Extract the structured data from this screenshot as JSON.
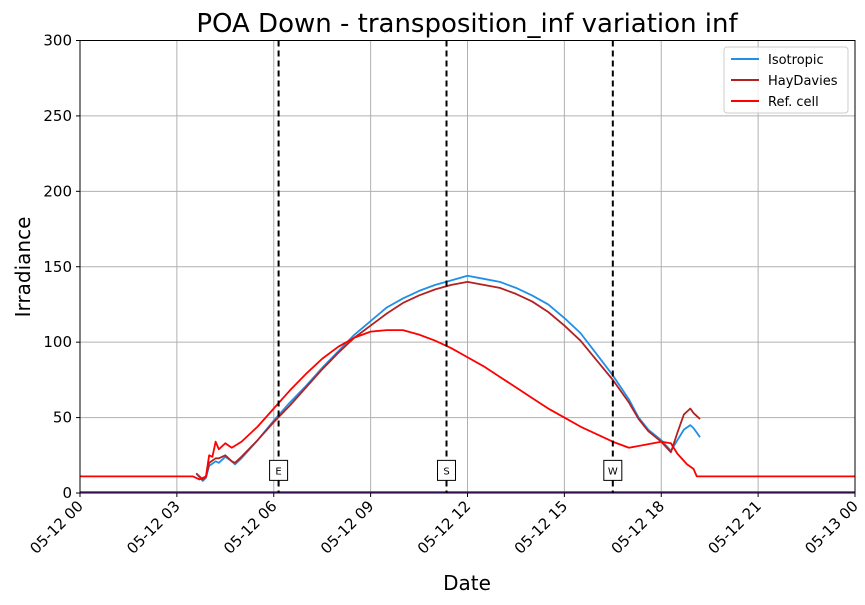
{
  "chart_data": {
    "type": "line",
    "title": "POA Down - transposition_inf variation inf",
    "xlabel": "Date",
    "ylabel": "Irradiance",
    "ylim": [
      0,
      300
    ],
    "xlim": [
      "2024-05-12 00:00",
      "2024-05-13 00:00"
    ],
    "x_ticks": [
      {
        "t": 0,
        "label": "05-12 00"
      },
      {
        "t": 3,
        "label": "05-12 03"
      },
      {
        "t": 6,
        "label": "05-12 06"
      },
      {
        "t": 9,
        "label": "05-12 09"
      },
      {
        "t": 12,
        "label": "05-12 12"
      },
      {
        "t": 15,
        "label": "05-12 15"
      },
      {
        "t": 18,
        "label": "05-12 18"
      },
      {
        "t": 21,
        "label": "05-12 21"
      },
      {
        "t": 24,
        "label": "05-13 00"
      }
    ],
    "y_ticks": [
      0,
      50,
      100,
      150,
      200,
      250,
      300
    ],
    "grid": true,
    "legend_position": "top-right",
    "vlines": [
      {
        "x": "05-12 06:10",
        "t": 6.15,
        "label": "E"
      },
      {
        "x": "05-12 11:20",
        "t": 11.35,
        "label": "S"
      },
      {
        "x": "05-12 16:30",
        "t": 16.5,
        "label": "W"
      }
    ],
    "series": [
      {
        "name": "Isotropic",
        "color": "#1f8fe8",
        "points": [
          [
            3.6,
            13
          ],
          [
            3.8,
            8
          ],
          [
            3.9,
            10
          ],
          [
            4.0,
            18
          ],
          [
            4.2,
            21
          ],
          [
            4.3,
            20
          ],
          [
            4.5,
            24
          ],
          [
            4.7,
            21
          ],
          [
            4.8,
            19
          ],
          [
            5.0,
            23
          ],
          [
            5.5,
            35
          ],
          [
            6.0,
            48
          ],
          [
            6.5,
            60
          ],
          [
            7.0,
            71
          ],
          [
            7.5,
            83
          ],
          [
            8.0,
            94
          ],
          [
            8.5,
            105
          ],
          [
            9.0,
            114
          ],
          [
            9.5,
            123
          ],
          [
            10.0,
            129
          ],
          [
            10.5,
            134
          ],
          [
            11.0,
            138
          ],
          [
            11.5,
            141
          ],
          [
            12.0,
            144
          ],
          [
            12.5,
            142
          ],
          [
            13.0,
            140
          ],
          [
            13.5,
            136
          ],
          [
            14.0,
            131
          ],
          [
            14.5,
            125
          ],
          [
            15.0,
            116
          ],
          [
            15.5,
            106
          ],
          [
            16.0,
            92
          ],
          [
            16.5,
            78
          ],
          [
            17.0,
            62
          ],
          [
            17.3,
            50
          ],
          [
            17.6,
            42
          ],
          [
            18.0,
            35
          ],
          [
            18.3,
            28
          ],
          [
            18.5,
            35
          ],
          [
            18.7,
            42
          ],
          [
            18.9,
            45
          ],
          [
            19.0,
            43
          ],
          [
            19.2,
            37
          ]
        ]
      },
      {
        "name": "HayDavies",
        "color": "#b22222",
        "points": [
          [
            3.6,
            13
          ],
          [
            3.8,
            9
          ],
          [
            3.9,
            11
          ],
          [
            4.0,
            20
          ],
          [
            4.2,
            23
          ],
          [
            4.3,
            23
          ],
          [
            4.5,
            25
          ],
          [
            4.7,
            21
          ],
          [
            4.8,
            20
          ],
          [
            5.0,
            24
          ],
          [
            5.5,
            35
          ],
          [
            6.0,
            47
          ],
          [
            6.5,
            58
          ],
          [
            7.0,
            70
          ],
          [
            7.5,
            82
          ],
          [
            8.0,
            93
          ],
          [
            8.5,
            103
          ],
          [
            9.0,
            111
          ],
          [
            9.5,
            119
          ],
          [
            10.0,
            126
          ],
          [
            10.5,
            131
          ],
          [
            11.0,
            135
          ],
          [
            11.5,
            138
          ],
          [
            12.0,
            140
          ],
          [
            12.5,
            138
          ],
          [
            13.0,
            136
          ],
          [
            13.5,
            132
          ],
          [
            14.0,
            127
          ],
          [
            14.5,
            120
          ],
          [
            15.0,
            111
          ],
          [
            15.5,
            101
          ],
          [
            16.0,
            88
          ],
          [
            16.5,
            75
          ],
          [
            17.0,
            60
          ],
          [
            17.3,
            49
          ],
          [
            17.6,
            41
          ],
          [
            18.0,
            34
          ],
          [
            18.3,
            27
          ],
          [
            18.5,
            40
          ],
          [
            18.7,
            52
          ],
          [
            18.9,
            56
          ],
          [
            19.0,
            53
          ],
          [
            19.2,
            49
          ]
        ]
      },
      {
        "name": "Ref. cell",
        "color": "#ff0000",
        "points": [
          [
            0,
            11
          ],
          [
            3.5,
            11
          ],
          [
            3.7,
            9
          ],
          [
            3.9,
            11
          ],
          [
            4.0,
            25
          ],
          [
            4.1,
            24
          ],
          [
            4.2,
            34
          ],
          [
            4.3,
            29
          ],
          [
            4.5,
            33
          ],
          [
            4.7,
            30
          ],
          [
            5.0,
            34
          ],
          [
            5.5,
            44
          ],
          [
            6.0,
            56
          ],
          [
            6.5,
            68
          ],
          [
            7.0,
            79
          ],
          [
            7.5,
            89
          ],
          [
            8.0,
            97
          ],
          [
            8.5,
            103
          ],
          [
            9.0,
            107
          ],
          [
            9.5,
            108
          ],
          [
            10.0,
            108
          ],
          [
            10.5,
            105
          ],
          [
            11.0,
            101
          ],
          [
            11.5,
            96
          ],
          [
            12.0,
            90
          ],
          [
            12.5,
            84
          ],
          [
            13.0,
            77
          ],
          [
            13.5,
            70
          ],
          [
            14.0,
            63
          ],
          [
            14.5,
            56
          ],
          [
            15.0,
            50
          ],
          [
            15.5,
            44
          ],
          [
            16.0,
            39
          ],
          [
            16.5,
            34
          ],
          [
            17.0,
            30
          ],
          [
            17.5,
            32
          ],
          [
            18.0,
            34
          ],
          [
            18.3,
            33
          ],
          [
            18.5,
            26
          ],
          [
            18.8,
            19
          ],
          [
            19.0,
            16
          ],
          [
            19.1,
            11
          ],
          [
            21.0,
            11
          ],
          [
            24.0,
            11
          ]
        ]
      }
    ]
  }
}
